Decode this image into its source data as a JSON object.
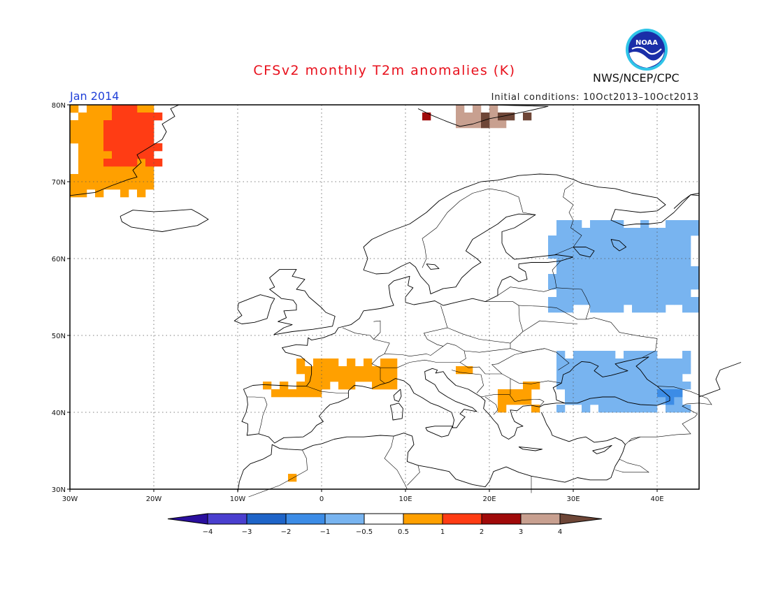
{
  "title": "CFSv2 monthly T2m anomalies (K)",
  "month_label": "Jan 2014",
  "initial_conditions": "Initial conditions: 10Oct2013–10Oct2013",
  "agency": "NWS/NCEP/CPC",
  "logo_text": "NOAA",
  "map": {
    "lon_range": [
      -30,
      45
    ],
    "lat_range": [
      30,
      80
    ],
    "lon_ticks": [
      {
        "lon": -30,
        "label": "30W"
      },
      {
        "lon": -20,
        "label": "20W"
      },
      {
        "lon": -10,
        "label": "10W"
      },
      {
        "lon": 0,
        "label": "0"
      },
      {
        "lon": 10,
        "label": "10E"
      },
      {
        "lon": 20,
        "label": "20E"
      },
      {
        "lon": 30,
        "label": "30E"
      },
      {
        "lon": 40,
        "label": "40E"
      }
    ],
    "lat_ticks": [
      {
        "lat": 30,
        "label": "30N"
      },
      {
        "lat": 40,
        "label": "40N"
      },
      {
        "lat": 50,
        "label": "50N"
      },
      {
        "lat": 60,
        "label": "60N"
      },
      {
        "lat": 70,
        "label": "70N"
      },
      {
        "lat": 80,
        "label": "80N"
      }
    ],
    "grid": "dotted"
  },
  "colorbar": {
    "labels": [
      "−4",
      "−3",
      "−2",
      "−1",
      "−0.5",
      "0.5",
      "1",
      "2",
      "3",
      "4"
    ],
    "colors": [
      "#2a0f9e",
      "#4a3fcf",
      "#1e64c8",
      "#3c8ce6",
      "#78b4f0",
      "#ffffff",
      "#ffa000",
      "#ff3c14",
      "#a00a0a",
      "#c8a090",
      "#6e4637"
    ]
  },
  "anomaly_regions": [
    {
      "class": "0.5 to 1",
      "color": "#ffa000",
      "area": "Greenland east coast",
      "lon": [
        -30,
        -20
      ],
      "lat": [
        68,
        80
      ]
    },
    {
      "class": "1 to 2",
      "color": "#ff3c14",
      "area": "Greenland east coast",
      "lon": [
        -26,
        -19
      ],
      "lat": [
        72,
        80
      ]
    },
    {
      "class": "0.5 to 1",
      "color": "#ffa000",
      "area": "France",
      "lon": [
        -3,
        9
      ],
      "lat": [
        43,
        47
      ]
    },
    {
      "class": "0.5 to 1",
      "color": "#ffa000",
      "area": "Iberian north coast",
      "lon": [
        -7,
        0
      ],
      "lat": [
        42,
        44
      ]
    },
    {
      "class": "0.5 to 1",
      "color": "#ffa000",
      "area": "Adriatic",
      "lon": [
        16,
        18
      ],
      "lat": [
        45,
        46
      ]
    },
    {
      "class": "0.5 to 1",
      "color": "#ffa000",
      "area": "Balkans",
      "lon": [
        21,
        26
      ],
      "lat": [
        40,
        44
      ]
    },
    {
      "class": "0.5 to 1",
      "color": "#ffa000",
      "area": "Morocco",
      "lon": [
        -4,
        -3
      ],
      "lat": [
        31,
        32
      ]
    },
    {
      "class": "2 to 3",
      "color": "#a00a0a",
      "area": "Svalbard west",
      "lon": [
        12,
        17
      ],
      "lat": [
        78,
        79
      ]
    },
    {
      "class": "3 to 4",
      "color": "#c8a090",
      "area": "Svalbard",
      "lon": [
        16,
        22
      ],
      "lat": [
        77,
        80
      ]
    },
    {
      "class": "above 4",
      "color": "#6e4637",
      "area": "Svalbard east",
      "lon": [
        19,
        25
      ],
      "lat": [
        77,
        79
      ]
    },
    {
      "class": "-1 to -0.5",
      "color": "#78b4f0",
      "area": "Western Russia",
      "lon": [
        27,
        45
      ],
      "lat": [
        53,
        65
      ]
    },
    {
      "class": "-1 to -0.5",
      "color": "#78b4f0",
      "area": "Black Sea region",
      "lon": [
        28,
        44
      ],
      "lat": [
        40,
        48
      ]
    },
    {
      "class": "-2 to -1",
      "color": "#3c8ce6",
      "area": "Caucasus",
      "lon": [
        40,
        43
      ],
      "lat": [
        41,
        43
      ]
    }
  ]
}
